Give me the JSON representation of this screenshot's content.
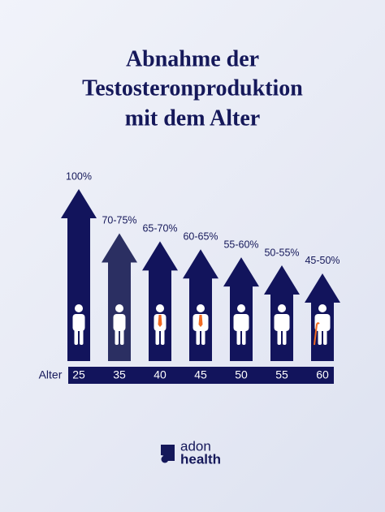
{
  "chart_data": {
    "type": "bar",
    "title": [
      "Abnahme der",
      "Testosteronproduktion",
      "mit dem Alter"
    ],
    "x_label": "Alter",
    "categories": [
      "25",
      "35",
      "40",
      "45",
      "50",
      "55",
      "60"
    ],
    "values": [
      [
        100
      ],
      [
        70,
        75
      ],
      [
        65,
        70
      ],
      [
        60,
        65
      ],
      [
        55,
        60
      ],
      [
        50,
        55
      ],
      [
        45,
        50
      ]
    ],
    "value_labels": [
      "100%",
      "70-75%",
      "65-70%",
      "60-65%",
      "55-60%",
      "50-55%",
      "45-50%"
    ],
    "colors": [
      "#12145c",
      "#2b2f62",
      "#12145c",
      "#12145c",
      "#12145c",
      "#12145c",
      "#12145c"
    ]
  },
  "logo": {
    "line1": "adon",
    "line2": "health"
  }
}
